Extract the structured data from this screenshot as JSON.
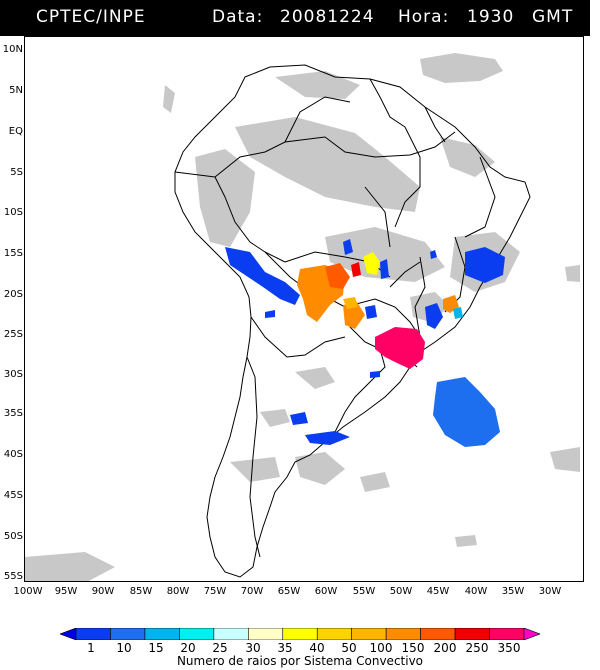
{
  "header": {
    "source": "CPTEC/INPE",
    "date_label": "Data:",
    "date": "20081224",
    "time_label": "Hora:",
    "time": "1930",
    "tz": "GMT"
  },
  "map": {
    "lat_ticks": [
      "10N",
      "5N",
      "EQ",
      "5S",
      "10S",
      "15S",
      "20S",
      "25S",
      "30S",
      "35S",
      "40S",
      "45S",
      "50S",
      "55S"
    ],
    "lon_ticks": [
      "100W",
      "95W",
      "90W",
      "85W",
      "80W",
      "75W",
      "70W",
      "65W",
      "60W",
      "55W",
      "50W",
      "45W",
      "40W",
      "35W",
      "30W"
    ],
    "colors": {
      "cloud": "#c8c8c8",
      "border": "#000000",
      "background": "#ffffff"
    }
  },
  "legend": {
    "title": "Numero de raios por Sistema Convectivo",
    "values": [
      "1",
      "10",
      "15",
      "20",
      "25",
      "30",
      "35",
      "40",
      "50",
      "100",
      "150",
      "200",
      "250",
      "350"
    ],
    "colors": [
      "#0000e6",
      "#0a3cf0",
      "#1e6ef0",
      "#00b4f0",
      "#00f0f0",
      "#c8ffff",
      "#ffffc8",
      "#ffff00",
      "#ffd200",
      "#ffb400",
      "#ff8c00",
      "#ff5a00",
      "#f00000",
      "#ff0064",
      "#ff00c8"
    ]
  }
}
